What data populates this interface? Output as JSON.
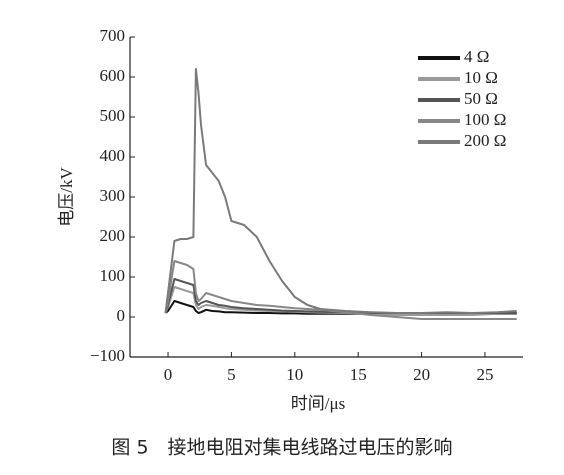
{
  "chart_data": {
    "type": "line",
    "caption": "图 5　接地电阻对集电线路过电压的影响",
    "xlabel": "时间/μs",
    "ylabel": "电压/kV",
    "x": [
      -0.2,
      0,
      0.5,
      1,
      1.5,
      2,
      2.2,
      2.4,
      2.6,
      3,
      3.5,
      4,
      4.5,
      5,
      6,
      7,
      8,
      9,
      10,
      11,
      12,
      14,
      16,
      18,
      20,
      22,
      24,
      26,
      27.5
    ],
    "series": [
      {
        "name": "4 Ω",
        "color": "#111111",
        "values": [
          10,
          15,
          40,
          35,
          30,
          25,
          15,
          10,
          12,
          18,
          15,
          14,
          12,
          12,
          11,
          10,
          10,
          9,
          9,
          8,
          8,
          8,
          8,
          8,
          8,
          8,
          8,
          8,
          8
        ]
      },
      {
        "name": "10 Ω",
        "color": "#9a9a9a",
        "values": [
          10,
          25,
          75,
          70,
          65,
          60,
          30,
          20,
          25,
          30,
          28,
          25,
          22,
          20,
          18,
          16,
          15,
          14,
          13,
          12,
          11,
          10,
          8,
          5,
          5,
          5,
          5,
          8,
          8
        ]
      },
      {
        "name": "50 Ω",
        "color": "#555555",
        "values": [
          10,
          30,
          95,
          90,
          85,
          80,
          40,
          30,
          35,
          40,
          35,
          30,
          28,
          25,
          22,
          20,
          18,
          16,
          15,
          14,
          13,
          12,
          10,
          10,
          10,
          10,
          10,
          10,
          10
        ]
      },
      {
        "name": "100 Ω",
        "color": "#888888",
        "values": [
          10,
          40,
          140,
          135,
          130,
          120,
          60,
          40,
          45,
          60,
          55,
          50,
          45,
          40,
          35,
          30,
          28,
          25,
          22,
          20,
          18,
          12,
          5,
          0,
          -5,
          -5,
          -5,
          -5,
          -5
        ]
      },
      {
        "name": "200 Ω",
        "color": "#7a7a7a",
        "values": [
          10,
          60,
          190,
          195,
          195,
          200,
          620,
          560,
          480,
          380,
          360,
          340,
          300,
          240,
          230,
          200,
          140,
          90,
          50,
          30,
          20,
          15,
          12,
          10,
          10,
          12,
          10,
          12,
          15
        ]
      }
    ],
    "xlim": [
      -3,
      28
    ],
    "ylim": [
      -100,
      700
    ],
    "xticks": [
      0,
      5,
      10,
      15,
      20,
      25
    ],
    "yticks": [
      {
        "value": -100,
        "label": "−100"
      },
      0,
      100,
      200,
      300,
      400,
      500,
      600,
      700
    ],
    "legend": "upper right"
  }
}
